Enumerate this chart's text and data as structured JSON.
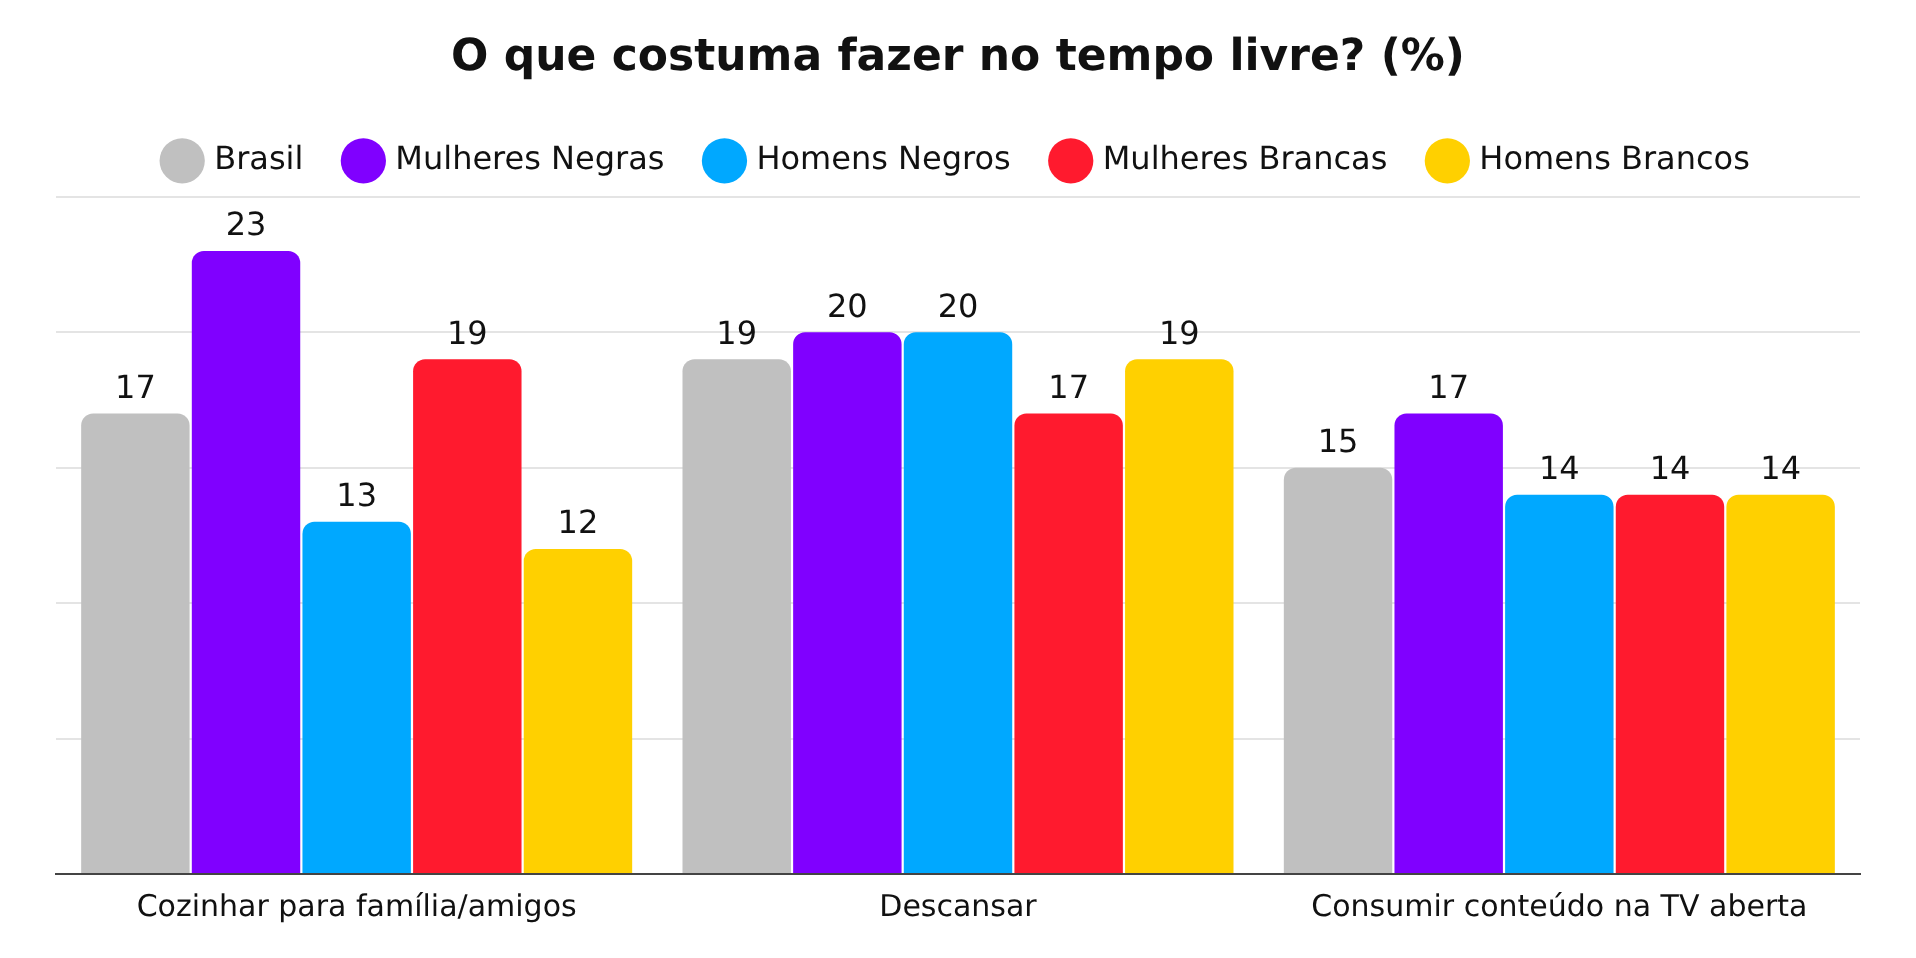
{
  "chart_data": {
    "type": "bar",
    "title": "O que costuma fazer no tempo livre? (%)",
    "categories": [
      "Cozinhar para família/amigos",
      "Descansar",
      "Consumir conteúdo na TV aberta"
    ],
    "series": [
      {
        "name": "Brasil",
        "color": "#c0c0c0",
        "values": [
          17,
          19,
          15
        ]
      },
      {
        "name": "Mulheres Negras",
        "color": "#8000ff",
        "values": [
          23,
          20,
          17
        ]
      },
      {
        "name": "Homens Negros",
        "color": "#00a8ff",
        "values": [
          13,
          20,
          14
        ]
      },
      {
        "name": "Mulheres Brancas",
        "color": "#ff1a2e",
        "values": [
          19,
          17,
          14
        ]
      },
      {
        "name": "Homens Brancos",
        "color": "#ffd000",
        "values": [
          12,
          19,
          14
        ]
      }
    ],
    "ylim": [
      0,
      25
    ],
    "yticks": [
      {
        "value": 0,
        "label": null
      },
      {
        "value": 5,
        "label": null
      },
      {
        "value": 10,
        "label": null
      },
      {
        "value": 15,
        "label": null
      },
      {
        "value": 20,
        "label": null
      },
      {
        "value": 25,
        "label": null
      }
    ],
    "tick_labels": "x",
    "grid": "y",
    "legend": "top",
    "data_labels": true
  }
}
